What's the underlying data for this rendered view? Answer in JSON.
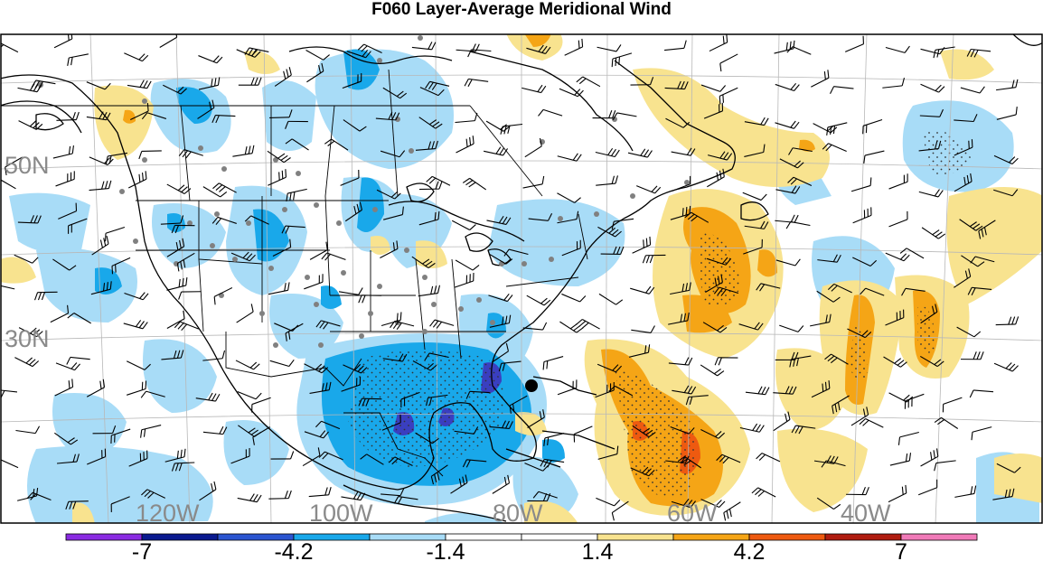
{
  "title": "F060 Layer-Average Meridional Wind",
  "latitude_labels": [
    "50N",
    "30N"
  ],
  "longitude_labels": [
    "120W",
    "100W",
    "80W",
    "60W",
    "40W"
  ],
  "colorbar": {
    "tick_labels": [
      "-7",
      "-4.2",
      "-1.4",
      "1.4",
      "4.2",
      "7"
    ],
    "colors": [
      "#8a2be2",
      "#0a1a8f",
      "#2b55d0",
      "#19a8ea",
      "#a8dcf7",
      "#ffffff",
      "#ffffff",
      "#f8e38f",
      "#f5a516",
      "#ee5a10",
      "#b01c10",
      "#f07ab8"
    ]
  },
  "shading_colors": {
    "light_blue": "#a8dcf7",
    "medium_blue": "#19a8ea",
    "dark_blue": "#2b55d0",
    "deep_blue": "#3a3fc0",
    "light_yellow": "#f8e38f",
    "orange": "#f5a516",
    "red_orange": "#ee5a10"
  }
}
